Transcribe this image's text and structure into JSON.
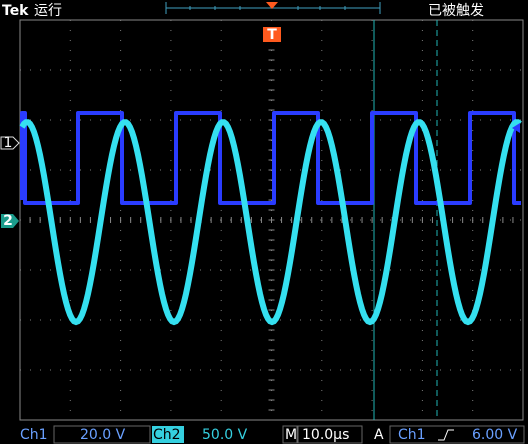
{
  "header": {
    "brand": "Tek",
    "status": "运行",
    "trigger_state": "已被触发"
  },
  "markers": {
    "ch1": "1",
    "ch2": "2",
    "trigger": "T"
  },
  "footer": {
    "ch1_label": "Ch1",
    "ch1_scale": "20.0 V",
    "ch2_label": "Ch2",
    "ch2_scale": "50.0 V",
    "time_label": "M",
    "time_scale": "10.0µs",
    "trigger_mode": "A",
    "trigger_source": "Ch1",
    "trigger_level": "6.00 V"
  }
}
